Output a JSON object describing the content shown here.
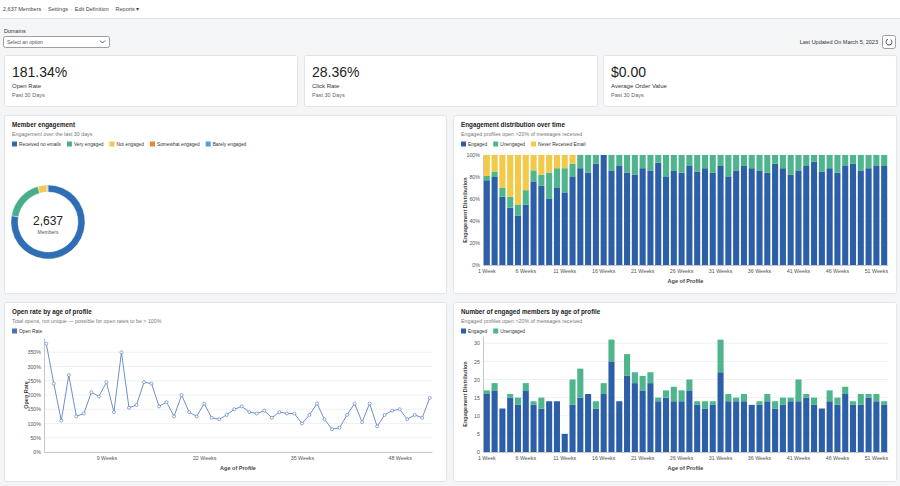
{
  "header": {
    "breadcrumbs": [
      "2,637 Members",
      "Settings",
      "Edit Definition",
      "Reports ▾"
    ],
    "separator": "·",
    "domains_label": "Domains",
    "domains_placeholder": "Select an option",
    "last_updated": "Last Updated On March 5, 2023"
  },
  "kpis": [
    {
      "value": "181.34%",
      "label": "Open Rate",
      "period": "Past 30 Days"
    },
    {
      "value": "28.36%",
      "label": "Click Rate",
      "period": "Past 30 Days"
    },
    {
      "value": "$0.00",
      "label": "Average Order Value",
      "period": "Past 30 Days"
    }
  ],
  "chart_data": [
    {
      "type": "pie",
      "title": "Member engagement",
      "subtitle": "Engagement over the last 30 days",
      "categories": [
        "Received no emails",
        "Very engaged",
        "Not engaged",
        "Somewhat engaged",
        "Barely engaged"
      ],
      "values": [
        2050,
        470,
        100,
        10,
        7
      ],
      "colors": [
        "#2f6db5",
        "#48ad8a",
        "#f2c94c",
        "#e8873a",
        "#4ba3d9"
      ],
      "center_value": "2,637",
      "center_label": "Members",
      "legend": "top-left"
    },
    {
      "type": "bar",
      "stacked": true,
      "title": "Engagement distribution over time",
      "subtitle": "Engaged profiles open >20% of messages received",
      "categories": [
        "1 Week",
        null,
        null,
        null,
        null,
        "6 Weeks",
        null,
        null,
        null,
        null,
        "11 Weeks",
        null,
        null,
        null,
        null,
        "16 Weeks",
        null,
        null,
        null,
        null,
        "21 Weeks",
        null,
        null,
        null,
        null,
        "26 Weeks",
        null,
        null,
        null,
        null,
        "31 Weeks",
        null,
        null,
        null,
        null,
        "36 Weeks",
        null,
        null,
        null,
        null,
        "41 Weeks",
        null,
        null,
        null,
        null,
        "46 Weeks",
        null,
        null,
        null,
        null,
        "51 Weeks",
        null
      ],
      "series": [
        {
          "name": "Engaged",
          "color": "#2d5fa8",
          "values": [
            77,
            80,
            62,
            52,
            45,
            55,
            76,
            72,
            60,
            70,
            66,
            80,
            88,
            84,
            92,
            100,
            86,
            90,
            84,
            82,
            88,
            86,
            93,
            80,
            86,
            84,
            90,
            85,
            88,
            84,
            90,
            80,
            86,
            90,
            88,
            86,
            84,
            92,
            88,
            82,
            86,
            90,
            94,
            85,
            88,
            84,
            90,
            92,
            86,
            88,
            90,
            90
          ]
        },
        {
          "name": "Unengaged",
          "color": "#4fb58c",
          "values": [
            4,
            5,
            8,
            10,
            10,
            13,
            10,
            10,
            24,
            18,
            22,
            12,
            12,
            16,
            8,
            0,
            14,
            10,
            16,
            18,
            12,
            14,
            7,
            20,
            14,
            16,
            10,
            15,
            12,
            16,
            10,
            20,
            14,
            10,
            12,
            14,
            16,
            8,
            12,
            18,
            14,
            10,
            6,
            15,
            12,
            16,
            10,
            8,
            14,
            12,
            10,
            10
          ]
        },
        {
          "name": "Never Received Email",
          "color": "#f3c948",
          "values": [
            19,
            15,
            30,
            38,
            45,
            32,
            14,
            18,
            16,
            12,
            12,
            8,
            0,
            0,
            0,
            0,
            0,
            0,
            0,
            0,
            0,
            0,
            0,
            0,
            0,
            0,
            0,
            0,
            0,
            0,
            0,
            0,
            0,
            0,
            0,
            0,
            0,
            0,
            0,
            0,
            0,
            0,
            0,
            0,
            0,
            0,
            0,
            0,
            0,
            0,
            0,
            0
          ]
        }
      ],
      "ylim": [
        0,
        100
      ],
      "yticks": [
        {
          "value": 0,
          "label": "0%"
        },
        {
          "value": 20,
          "label": "20%"
        },
        {
          "value": 40,
          "label": "40%"
        },
        {
          "value": 60,
          "label": "60%"
        },
        {
          "value": 80,
          "label": "80%"
        },
        {
          "value": 100,
          "label": "100%"
        }
      ],
      "xlabel": "Age of Profile",
      "ylabel": "Engagement Distribution",
      "grid": true,
      "legend": "top-left"
    },
    {
      "type": "line",
      "marker": "circle",
      "title": "Open rate by age of profile",
      "subtitle": "Total opens, not unique — possible for open rates to be > 100%",
      "categories": [
        null,
        null,
        null,
        null,
        null,
        null,
        null,
        null,
        "9 Weeks",
        null,
        null,
        null,
        null,
        null,
        null,
        null,
        null,
        null,
        null,
        null,
        null,
        "22 Weeks",
        null,
        null,
        null,
        null,
        null,
        null,
        null,
        null,
        null,
        null,
        null,
        null,
        "35 Weeks",
        null,
        null,
        null,
        null,
        null,
        null,
        null,
        null,
        null,
        null,
        null,
        null,
        "48 Weeks",
        null,
        null,
        null,
        null
      ],
      "series": [
        {
          "name": "Open Rate",
          "color": "#4a74b8",
          "values": [
            380,
            240,
            110,
            270,
            125,
            135,
            210,
            195,
            245,
            140,
            350,
            155,
            165,
            245,
            240,
            160,
            175,
            125,
            200,
            140,
            125,
            170,
            120,
            115,
            130,
            150,
            160,
            140,
            135,
            145,
            120,
            140,
            135,
            135,
            100,
            130,
            170,
            115,
            80,
            85,
            130,
            170,
            105,
            170,
            90,
            130,
            145,
            150,
            115,
            130,
            120,
            190
          ]
        }
      ],
      "ylim": [
        0,
        400
      ],
      "yticks": [
        {
          "value": 0,
          "label": "0%"
        },
        {
          "value": 50,
          "label": "50%"
        },
        {
          "value": 100,
          "label": "100%"
        },
        {
          "value": 150,
          "label": "150%"
        },
        {
          "value": 200,
          "label": "200%"
        },
        {
          "value": 250,
          "label": "250%"
        },
        {
          "value": 300,
          "label": "300%"
        },
        {
          "value": 350,
          "label": "350%"
        }
      ],
      "xlabel": "Age of Profile",
      "ylabel": "Open Rate",
      "grid": true,
      "legend": "top-left"
    },
    {
      "type": "bar",
      "stacked": true,
      "title": "Number of engaged members by age of profile",
      "subtitle": "Engaged profiles open >20% of messages received",
      "categories": [
        "1 Week",
        null,
        null,
        null,
        null,
        "6 Weeks",
        null,
        null,
        null,
        null,
        "11 Weeks",
        null,
        null,
        null,
        null,
        "16 Weeks",
        null,
        null,
        null,
        null,
        "21 Weeks",
        null,
        null,
        null,
        null,
        "26 Weeks",
        null,
        null,
        null,
        null,
        "31 Weeks",
        null,
        null,
        null,
        null,
        "36 Weeks",
        null,
        null,
        null,
        null,
        "41 Weeks",
        null,
        null,
        null,
        null,
        "46 Weeks",
        null,
        null,
        null,
        null,
        "51 Weeks",
        null
      ],
      "series": [
        {
          "name": "Engaged",
          "color": "#2d5fa8",
          "values": [
            16,
            17,
            12,
            15,
            13,
            17,
            13,
            12,
            14,
            14,
            5,
            13,
            15,
            16,
            12,
            16,
            25,
            14,
            21,
            19,
            17,
            19,
            14,
            15,
            14,
            14,
            17,
            13,
            12,
            13,
            22,
            14,
            14,
            14,
            13,
            13,
            14,
            12,
            13,
            14,
            14,
            15,
            13,
            12,
            14,
            13,
            16,
            13,
            13,
            15,
            14,
            13
          ]
        },
        {
          "name": "Unengaged",
          "color": "#4fb58c",
          "values": [
            1,
            2,
            0,
            1,
            2,
            2,
            1,
            3,
            0,
            0,
            0,
            7,
            8,
            0,
            2,
            3,
            6,
            0,
            6,
            3,
            4,
            3,
            1,
            2,
            4,
            3,
            3,
            1,
            2,
            1,
            9,
            2,
            1,
            2,
            0,
            1,
            2,
            2,
            2,
            1,
            6,
            1,
            2,
            0,
            3,
            2,
            2,
            1,
            3,
            1,
            2,
            1
          ]
        }
      ],
      "ylim": [
        0,
        32
      ],
      "yticks": [
        0,
        5,
        10,
        15,
        20,
        25,
        30
      ],
      "xlabel": "Age of Profile",
      "ylabel": "Engagement Distribution",
      "grid": true,
      "legend": "top-left"
    }
  ]
}
